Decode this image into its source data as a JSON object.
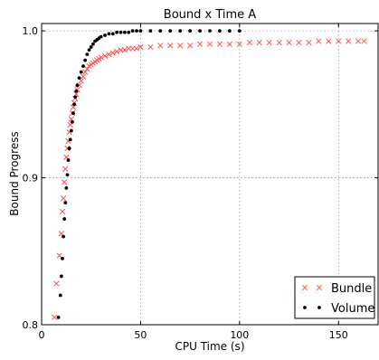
{
  "chart_data": {
    "type": "scatter",
    "title": "Bound x Time A",
    "xlabel": "CPU Time (s)",
    "ylabel": "Bound Progress",
    "xlim": [
      0,
      170
    ],
    "ylim": [
      0.8,
      1.005
    ],
    "xticks": [
      0,
      50,
      100,
      150
    ],
    "xtick_labels": [
      "0",
      "50",
      "100",
      "150"
    ],
    "yticks": [
      0.8,
      0.9,
      1.0
    ],
    "ytick_labels": [
      "0.8",
      "0.9",
      "1.0"
    ],
    "grid": true,
    "legend_position": "bottom-right",
    "series": [
      {
        "name": "Bundle",
        "marker": "x",
        "color": "#ff5050",
        "x": [
          6.5,
          7.5,
          9,
          10,
          10.5,
          11,
          11.5,
          12,
          12.5,
          13,
          13.5,
          14,
          14.5,
          15,
          15.5,
          16,
          16.5,
          17,
          17.5,
          18,
          19,
          20,
          21,
          22,
          23,
          24,
          25,
          26,
          27,
          28,
          29,
          30,
          32,
          34,
          36,
          38,
          40,
          42,
          44,
          46,
          48,
          50,
          55,
          60,
          65,
          70,
          75,
          80,
          85,
          90,
          95,
          100,
          105,
          110,
          115,
          120,
          125,
          130,
          135,
          140,
          145,
          150,
          155,
          160,
          163
        ],
        "y": [
          0.805,
          0.828,
          0.847,
          0.862,
          0.877,
          0.886,
          0.897,
          0.906,
          0.914,
          0.92,
          0.925,
          0.931,
          0.936,
          0.94,
          0.944,
          0.948,
          0.951,
          0.954,
          0.957,
          0.96,
          0.963,
          0.966,
          0.969,
          0.972,
          0.974,
          0.976,
          0.977,
          0.978,
          0.979,
          0.98,
          0.981,
          0.982,
          0.983,
          0.984,
          0.985,
          0.986,
          0.987,
          0.987,
          0.988,
          0.988,
          0.988,
          0.989,
          0.989,
          0.99,
          0.99,
          0.99,
          0.99,
          0.991,
          0.991,
          0.991,
          0.991,
          0.991,
          0.992,
          0.992,
          0.992,
          0.992,
          0.992,
          0.992,
          0.992,
          0.993,
          0.993,
          0.993,
          0.993,
          0.993,
          0.993
        ]
      },
      {
        "name": "Volume",
        "marker": "dot",
        "color": "#000000",
        "x": [
          8.5,
          9.5,
          10,
          10.5,
          11,
          11.5,
          12,
          12.5,
          13,
          13.5,
          14,
          14.5,
          15,
          15.5,
          16,
          16.5,
          17,
          17.5,
          18,
          19,
          20,
          21,
          22,
          23,
          24,
          25,
          26,
          27,
          28,
          29,
          30,
          32,
          34,
          36,
          38,
          40,
          42,
          44,
          46,
          48,
          50,
          55,
          60,
          65,
          70,
          75,
          80,
          85,
          90,
          95,
          100
        ],
        "y": [
          0.805,
          0.82,
          0.833,
          0.845,
          0.86,
          0.872,
          0.883,
          0.893,
          0.902,
          0.912,
          0.92,
          0.926,
          0.932,
          0.938,
          0.944,
          0.95,
          0.955,
          0.959,
          0.963,
          0.968,
          0.972,
          0.976,
          0.98,
          0.984,
          0.987,
          0.989,
          0.991,
          0.993,
          0.994,
          0.995,
          0.996,
          0.997,
          0.998,
          0.998,
          0.999,
          0.999,
          0.999,
          0.999,
          1.0,
          1.0,
          1.0,
          1.0,
          1.0,
          1.0,
          1.0,
          1.0,
          1.0,
          1.0,
          1.0,
          1.0,
          1.0
        ]
      }
    ]
  }
}
